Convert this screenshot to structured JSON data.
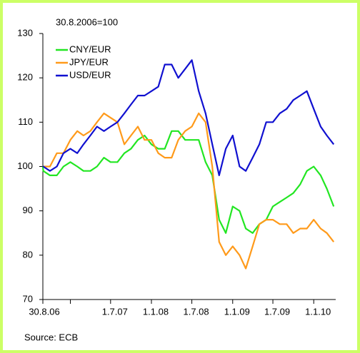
{
  "chart_data": {
    "type": "line",
    "subtitle": "30.8.2006=100",
    "source": "Source: ECB",
    "x": [
      "2006-08-30",
      "2006-09-01",
      "2006-10-01",
      "2006-11-01",
      "2006-12-01",
      "2007-01-01",
      "2007-02-01",
      "2007-03-01",
      "2007-04-01",
      "2007-05-01",
      "2007-06-01",
      "2007-07-01",
      "2007-08-01",
      "2007-09-01",
      "2007-10-01",
      "2007-11-01",
      "2007-12-01",
      "2008-01-01",
      "2008-02-01",
      "2008-03-01",
      "2008-04-01",
      "2008-05-01",
      "2008-06-01",
      "2008-07-01",
      "2008-08-01",
      "2008-09-01",
      "2008-10-01",
      "2008-11-01",
      "2008-12-01",
      "2009-01-01",
      "2009-02-01",
      "2009-03-01",
      "2009-04-01",
      "2009-05-01",
      "2009-06-01",
      "2009-07-01",
      "2009-08-01",
      "2009-09-01",
      "2009-10-01",
      "2009-11-01",
      "2009-12-01",
      "2010-01-01",
      "2010-02-01",
      "2010-03-01",
      "2010-04-01"
    ],
    "series": [
      {
        "name": "CNY/EUR",
        "color": "#22e622",
        "values": [
          100,
          99,
          98,
          98,
          100,
          101,
          100,
          99,
          99,
          100,
          102,
          101,
          101,
          103,
          104,
          106,
          107,
          105,
          104,
          104,
          108,
          108,
          106,
          106,
          106,
          101,
          98,
          88,
          85,
          91,
          90,
          86,
          85,
          87,
          88,
          91,
          92,
          93,
          94,
          96,
          99,
          100,
          98,
          95,
          91
        ]
      },
      {
        "name": "JPY/EUR",
        "color": "#ff9a1a",
        "values": [
          100,
          100,
          100,
          103,
          103,
          106,
          108,
          107,
          108,
          110,
          112,
          111,
          110,
          105,
          107,
          109,
          106,
          106,
          103,
          102,
          102,
          106,
          108,
          109,
          112,
          110,
          100,
          83,
          80,
          82,
          80,
          77,
          82,
          87,
          88,
          88,
          87,
          87,
          85,
          86,
          86,
          88,
          86,
          85,
          83
        ]
      },
      {
        "name": "USD/EUR",
        "color": "#1010d0",
        "values": [
          100,
          100,
          99,
          100,
          103,
          104,
          103,
          105,
          107,
          109,
          108,
          109,
          110,
          112,
          114,
          116,
          116,
          117,
          118,
          123,
          123,
          120,
          122,
          124,
          117,
          112,
          105,
          98,
          104,
          107,
          100,
          99,
          102,
          105,
          110,
          110,
          112,
          113,
          115,
          116,
          117,
          113,
          109,
          107,
          105
        ]
      }
    ],
    "xlim": [
      "2006-08-30",
      "2010-04-10"
    ],
    "xticks": [
      {
        "value": "2006-08-30",
        "label": "30.8.06"
      },
      {
        "value": "2007-07-01",
        "label": "1.7.07"
      },
      {
        "value": "2008-01-01",
        "label": "1.1.08"
      },
      {
        "value": "2008-07-01",
        "label": "1.7.08"
      },
      {
        "value": "2009-01-01",
        "label": "1.1.09"
      },
      {
        "value": "2009-07-01",
        "label": "1.7.09"
      },
      {
        "value": "2010-01-01",
        "label": "1.1.10"
      }
    ],
    "xminor_ticks": [
      "2007-01-01"
    ],
    "ylim": [
      70,
      130
    ],
    "yticks": [
      70,
      80,
      90,
      100,
      110,
      120,
      130
    ],
    "legend": "upper left"
  }
}
